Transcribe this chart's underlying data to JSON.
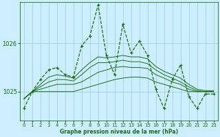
{
  "xlabel": "Graphe pression niveau de la mer (hPa)",
  "background_color": "#cceeff",
  "grid_color": "#99cccc",
  "line_color": "#1a6b1a",
  "x_ticks": [
    0,
    1,
    2,
    3,
    4,
    5,
    6,
    7,
    8,
    9,
    10,
    11,
    12,
    13,
    14,
    15,
    16,
    17,
    18,
    19,
    20,
    21,
    22,
    23
  ],
  "yticks": [
    1025,
    1026
  ],
  "ylim": [
    1024.4,
    1026.85
  ],
  "xlim": [
    -0.5,
    23.5
  ],
  "flat1_y": [
    1024.85,
    1025.0,
    1025.0,
    1025.0,
    1025.0,
    1025.0,
    1025.0,
    1025.05,
    1025.1,
    1025.15,
    1025.2,
    1025.25,
    1025.28,
    1025.3,
    1025.3,
    1025.28,
    1025.2,
    1025.15,
    1025.1,
    1025.05,
    1025.0,
    1025.0,
    1025.0,
    1025.0
  ],
  "flat2_y": [
    1024.85,
    1025.0,
    1025.05,
    1025.1,
    1025.15,
    1025.15,
    1025.15,
    1025.2,
    1025.3,
    1025.4,
    1025.45,
    1025.5,
    1025.52,
    1025.5,
    1025.5,
    1025.48,
    1025.35,
    1025.28,
    1025.2,
    1025.15,
    1025.05,
    1025.0,
    1025.0,
    1025.0
  ],
  "flat3_y": [
    1024.85,
    1025.0,
    1025.1,
    1025.2,
    1025.25,
    1025.25,
    1025.22,
    1025.35,
    1025.5,
    1025.6,
    1025.6,
    1025.62,
    1025.65,
    1025.62,
    1025.62,
    1025.58,
    1025.45,
    1025.35,
    1025.28,
    1025.2,
    1025.1,
    1025.02,
    1025.0,
    1025.0
  ],
  "flat4_y": [
    1024.85,
    1025.0,
    1025.15,
    1025.3,
    1025.35,
    1025.32,
    1025.28,
    1025.45,
    1025.6,
    1025.72,
    1025.7,
    1025.72,
    1025.75,
    1025.72,
    1025.72,
    1025.68,
    1025.52,
    1025.42,
    1025.35,
    1025.28,
    1025.15,
    1025.05,
    1025.02,
    1025.02
  ],
  "main_x": [
    0,
    1,
    2,
    3,
    4,
    5,
    6,
    7,
    8,
    9,
    10,
    11,
    12,
    13,
    14,
    15,
    16,
    17,
    18,
    19,
    20,
    21,
    22,
    23
  ],
  "main_y": [
    1024.65,
    1025.0,
    1025.25,
    1025.45,
    1025.5,
    1025.35,
    1025.3,
    1025.95,
    1026.15,
    1026.8,
    1025.75,
    1025.35,
    1026.4,
    1025.8,
    1026.05,
    1025.75,
    1025.05,
    1024.65,
    1025.25,
    1025.55,
    1024.9,
    1024.65,
    1024.95,
    1024.95
  ]
}
